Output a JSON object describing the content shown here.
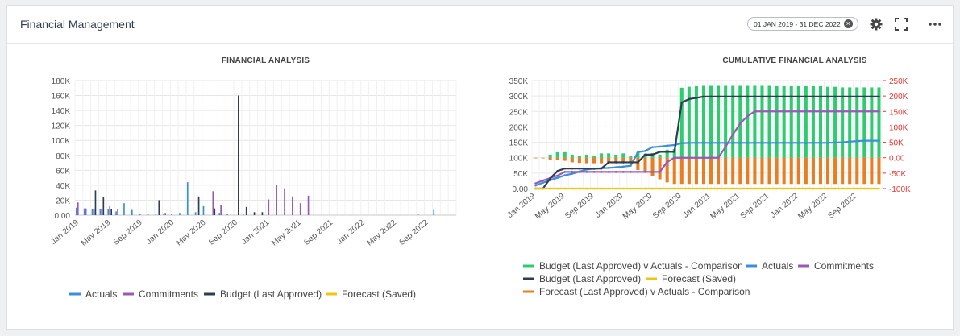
{
  "widget": {
    "title": "Financial Management",
    "date_range": "01 JAN 2019 - 31 DEC 2022",
    "icons": [
      "clear-icon",
      "gear-icon",
      "fullscreen-icon",
      "more-icon"
    ]
  },
  "chart_data": [
    {
      "type": "bar",
      "title": "FINANCIAL ANALYSIS",
      "xlabel": "",
      "ylabel": "",
      "ylim": [
        0,
        180000
      ],
      "y_ticks": [
        "0.00",
        "20K",
        "40K",
        "60K",
        "80K",
        "100K",
        "120K",
        "140K",
        "160K",
        "180K"
      ],
      "x_ticks": [
        "Jan 2019",
        "May 2019",
        "Sep 2019",
        "Jan 2020",
        "May 2020",
        "Sep 2020",
        "Jan 2021",
        "May 2021",
        "Sep 2021",
        "Jan 2022",
        "May 2022",
        "Sep 2022"
      ],
      "categories_count": 48,
      "series": [
        {
          "name": "Actuals",
          "color": "#3a8fd6",
          "values": [
            10000,
            9000,
            8000,
            8000,
            8000,
            5000,
            16000,
            7000,
            2000,
            2000,
            1000,
            2000,
            2000,
            3000,
            44000,
            4000,
            12000,
            0,
            3000,
            2000,
            0,
            1000,
            0,
            0,
            0,
            0,
            0,
            0,
            0,
            0,
            0,
            0,
            0,
            0,
            0,
            0,
            0,
            0,
            0,
            0,
            0,
            0,
            0,
            2000,
            0,
            7000,
            0,
            0
          ]
        },
        {
          "name": "Commitments",
          "color": "#9b59b6",
          "values": [
            17000,
            9000,
            8000,
            8000,
            12000,
            8000,
            0,
            0,
            0,
            0,
            0,
            3000,
            0,
            0,
            0,
            0,
            0,
            32000,
            14000,
            0,
            0,
            0,
            0,
            0,
            21000,
            40000,
            36000,
            25000,
            16000,
            26000,
            0,
            0,
            0,
            0,
            0,
            0,
            0,
            0,
            0,
            0,
            0,
            0,
            0,
            0,
            0,
            0,
            0,
            0
          ]
        },
        {
          "name": "Budget (Last Approved)",
          "color": "#2c3e50",
          "values": [
            0,
            0,
            33000,
            24000,
            8000,
            0,
            0,
            0,
            0,
            0,
            20000,
            0,
            0,
            0,
            0,
            25000,
            0,
            9000,
            0,
            0,
            160000,
            11000,
            4000,
            4000,
            0,
            0,
            0,
            0,
            0,
            0,
            0,
            0,
            0,
            0,
            0,
            0,
            0,
            0,
            0,
            0,
            0,
            0,
            0,
            0,
            0,
            0,
            0,
            0
          ]
        },
        {
          "name": "Forecast (Saved)",
          "color": "#f1c40f",
          "values": [
            0,
            0,
            0,
            0,
            0,
            0,
            0,
            0,
            0,
            0,
            0,
            0,
            0,
            0,
            0,
            0,
            0,
            0,
            0,
            0,
            0,
            0,
            0,
            0,
            0,
            0,
            0,
            0,
            0,
            0,
            0,
            0,
            0,
            0,
            0,
            0,
            0,
            0,
            0,
            0,
            0,
            0,
            0,
            0,
            0,
            0,
            0,
            0
          ]
        }
      ],
      "legend": "bottom"
    },
    {
      "type": "combo",
      "title": "CUMULATIVE FINANCIAL ANALYSIS",
      "ylim_left": [
        0,
        350000
      ],
      "ylim_right": [
        -100000,
        250000
      ],
      "y_ticks_left": [
        "0.00",
        "50K",
        "100K",
        "150K",
        "200K",
        "250K",
        "300K",
        "350K"
      ],
      "y_ticks_right": [
        "-100K",
        "-50K",
        "0.00",
        "50K",
        "100K",
        "150K",
        "200K",
        "250K"
      ],
      "x_ticks": [
        "Jan 2019",
        "May 2019",
        "Sep 2019",
        "Jan 2020",
        "May 2020",
        "Sep 2020",
        "Jan 2021",
        "May 2021",
        "Sep 2021",
        "Jan 2022",
        "May 2022",
        "Sep 2022"
      ],
      "categories_count": 48,
      "series": [
        {
          "name": "Budget (Last Approved) v Actuals - Comparison",
          "color": "#2ecc71",
          "kind": "bar",
          "axis": "right",
          "values": [
            0,
            0,
            10000,
            18000,
            18000,
            10000,
            7000,
            10000,
            7000,
            14000,
            14000,
            10000,
            14000,
            7000,
            18000,
            13000,
            15000,
            10000,
            26000,
            28000,
            227000,
            230000,
            232000,
            233000,
            233000,
            233000,
            233000,
            233000,
            233000,
            233000,
            233000,
            233000,
            233000,
            232000,
            232000,
            232000,
            232000,
            232000,
            232000,
            232000,
            230000,
            230000,
            228000,
            228000,
            228000,
            228000,
            228000,
            228000
          ]
        },
        {
          "name": "Forecast (Last Approved) v Actuals - Comparison",
          "color": "#e67e22",
          "kind": "bar",
          "axis": "right",
          "values": [
            -2000,
            -2000,
            -8000,
            -8000,
            -10000,
            -15000,
            -17000,
            -18000,
            -18000,
            -18000,
            -18000,
            -18000,
            -18000,
            -18000,
            -40000,
            -48000,
            -60000,
            -70000,
            -80000,
            -85000,
            -85000,
            -85000,
            -85000,
            -85000,
            -85000,
            -85000,
            -85000,
            -85000,
            -85000,
            -85000,
            -85000,
            -85000,
            -85000,
            -85000,
            -85000,
            -85000,
            -85000,
            -85000,
            -85000,
            -85000,
            -85000,
            -85000,
            -85000,
            -85000,
            -85000,
            -85000,
            -85000,
            -85000
          ]
        },
        {
          "name": "Actuals",
          "color": "#3a8fd6",
          "kind": "line",
          "axis": "left",
          "values": [
            10000,
            19000,
            27000,
            35000,
            43000,
            48000,
            55000,
            62000,
            64000,
            66000,
            67000,
            69000,
            71000,
            74000,
            118000,
            122000,
            134000,
            136000,
            139000,
            141000,
            147000,
            148000,
            148000,
            148000,
            148000,
            148000,
            148000,
            148000,
            148000,
            148000,
            148000,
            148000,
            148000,
            148000,
            148000,
            148000,
            148000,
            148000,
            148000,
            148000,
            148000,
            149000,
            150000,
            152000,
            154000,
            155000,
            155000,
            155000
          ]
        },
        {
          "name": "Commitments",
          "color": "#9b59b6",
          "kind": "line",
          "axis": "left",
          "values": [
            17000,
            26000,
            34000,
            42000,
            54000,
            54000,
            54000,
            54000,
            54000,
            54000,
            54000,
            54000,
            54000,
            54000,
            54000,
            54000,
            54000,
            54000,
            86000,
            100000,
            100000,
            100000,
            100000,
            100000,
            100000,
            100000,
            135000,
            175000,
            211000,
            235000,
            250000,
            250000,
            250000,
            250000,
            250000,
            250000,
            250000,
            250000,
            250000,
            250000,
            250000,
            250000,
            250000,
            250000,
            250000,
            250000,
            250000,
            250000
          ]
        },
        {
          "name": "Budget (Last Approved)",
          "color": "#2c3e50",
          "kind": "line",
          "axis": "left",
          "values": [
            0,
            0,
            33000,
            57000,
            65000,
            65000,
            65000,
            65000,
            65000,
            65000,
            85000,
            85000,
            85000,
            85000,
            85000,
            110000,
            110000,
            119000,
            119000,
            119000,
            279000,
            290000,
            294000,
            298000,
            298000,
            298000,
            298000,
            298000,
            298000,
            298000,
            298000,
            298000,
            298000,
            298000,
            298000,
            298000,
            298000,
            298000,
            298000,
            298000,
            298000,
            298000,
            298000,
            298000,
            298000,
            298000,
            298000,
            298000
          ]
        },
        {
          "name": "Forecast (Saved)",
          "color": "#f1c40f",
          "kind": "line",
          "axis": "left",
          "values": [
            0,
            0,
            0,
            0,
            0,
            0,
            0,
            0,
            0,
            0,
            0,
            0,
            0,
            0,
            0,
            0,
            0,
            0,
            0,
            0,
            0,
            0,
            0,
            0,
            0,
            0,
            0,
            0,
            0,
            0,
            0,
            0,
            0,
            0,
            0,
            0,
            0,
            0,
            0,
            0,
            0,
            0,
            0,
            0,
            0,
            0,
            0,
            0
          ]
        }
      ],
      "legend": "bottom"
    }
  ]
}
